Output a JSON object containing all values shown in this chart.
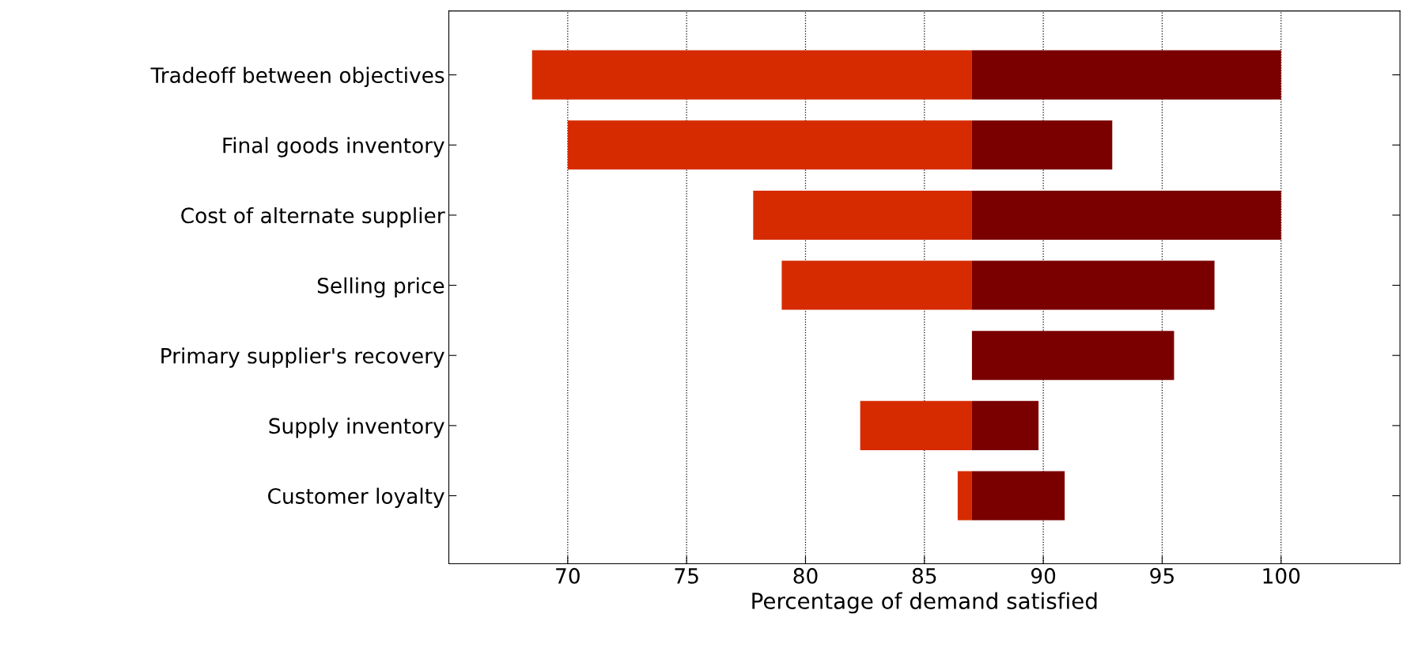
{
  "chart_data": {
    "type": "bar",
    "orientation": "horizontal",
    "xlabel": "Percentage of demand satisfied",
    "categories": [
      "Tradeoff between objectives",
      "Final goods inventory",
      "Cost of alternate supplier",
      "Selling price",
      "Primary supplier's recovery",
      "Supply inventory",
      "Customer loyalty"
    ],
    "series": [
      {
        "color": "#d62b00",
        "base": [
          68.5,
          70,
          77.8,
          79,
          null,
          82.3,
          86.4
        ],
        "values": [
          18.5,
          17,
          9.2,
          8,
          null,
          4.7,
          0.6
        ]
      },
      {
        "color": "#7a0000",
        "base": [
          87,
          87,
          87,
          87,
          87,
          87,
          87
        ],
        "values": [
          13,
          5.9,
          13,
          10.2,
          8.5,
          2.8,
          3.9
        ]
      }
    ],
    "xlim": [
      65,
      105
    ],
    "xticks": [
      70,
      75,
      80,
      85,
      90,
      95,
      100
    ],
    "grid": "x",
    "line_style": "dotted"
  }
}
